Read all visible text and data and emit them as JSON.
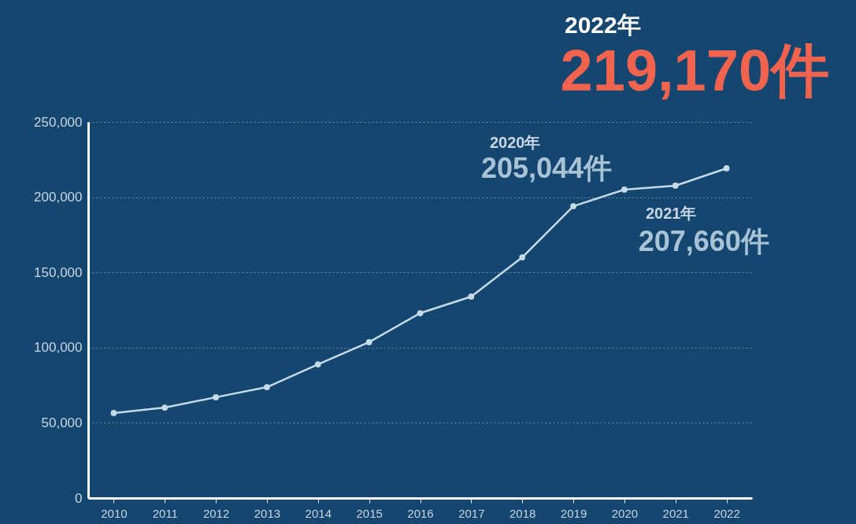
{
  "chart_data": {
    "type": "line",
    "categories": [
      "2010",
      "2011",
      "2012",
      "2013",
      "2014",
      "2015",
      "2016",
      "2017",
      "2018",
      "2019",
      "2020",
      "2021",
      "2022"
    ],
    "series": [
      {
        "color": "#c5dbe8",
        "values": [
          56500,
          60100,
          67000,
          73700,
          88900,
          103600,
          122900,
          133900,
          160000,
          194000,
          205044,
          207660,
          219170
        ]
      }
    ],
    "ylim": [
      0,
      250000
    ],
    "yticks": [
      {
        "value": 0,
        "label": "0"
      },
      {
        "value": 50000,
        "label": "50,000"
      },
      {
        "value": 100000,
        "label": "100,000"
      },
      {
        "value": 150000,
        "label": "150,000"
      },
      {
        "value": 200000,
        "label": "200,000"
      },
      {
        "value": 250000,
        "label": "250,000"
      }
    ],
    "grid": "y",
    "marker": "circle",
    "line_style": "solid",
    "annotations": [
      "2022年",
      {
        "text": "219,170件",
        "x": "2022",
        "y": 219170
      },
      "2020年",
      {
        "text": "205,044件",
        "x": "2020",
        "y": 205044
      },
      "2021年",
      {
        "text": "207,660件",
        "x": "2021",
        "y": 207660
      }
    ]
  }
}
